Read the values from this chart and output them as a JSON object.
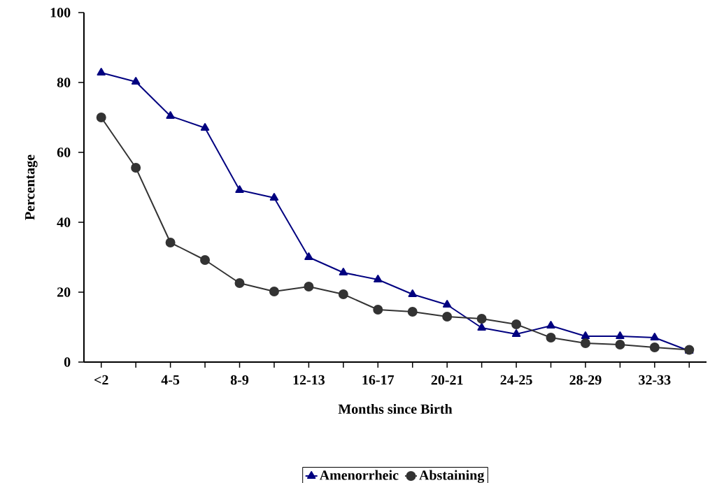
{
  "chart_data": {
    "type": "line",
    "xlabel": "Months since Birth",
    "ylabel": "Percentage",
    "categories": [
      "<2",
      null,
      "4-5",
      null,
      "8-9",
      null,
      "12-13",
      null,
      "16-17",
      null,
      "20-21",
      null,
      "24-25",
      null,
      "28-29",
      null,
      "32-33",
      null
    ],
    "series": [
      {
        "name": "Amenorrheic",
        "color": "#000080",
        "marker": "triangle",
        "values": [
          82.8,
          80.2,
          70.4,
          67,
          49.2,
          47,
          30,
          25.6,
          23.6,
          19.4,
          16.4,
          9.8,
          8,
          10.4,
          7.4,
          7.4,
          7,
          3.2
        ]
      },
      {
        "name": "Abstaining",
        "color": "#333333",
        "marker": "circle",
        "values": [
          70,
          55.6,
          34.2,
          29.2,
          22.6,
          20.2,
          21.6,
          19.4,
          15,
          14.4,
          13,
          12.4,
          10.8,
          7,
          5.4,
          5,
          4.2,
          3.5
        ]
      }
    ],
    "ylim": [
      0,
      100
    ],
    "yticks": [
      0,
      20,
      40,
      60,
      80,
      100
    ],
    "grid": false,
    "legend": "bottom",
    "line_style": "solid"
  }
}
